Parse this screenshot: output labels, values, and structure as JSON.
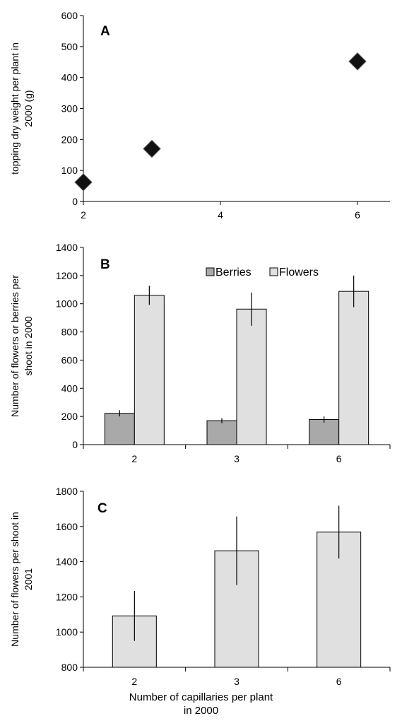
{
  "figure_xlabel": [
    "Number of capillaries per plant",
    "in 2000"
  ],
  "chart_data": [
    {
      "type": "scatter",
      "panel": "A",
      "ylabel": [
        "topping dry weight per plant in",
        "2000 (g)"
      ],
      "xlim": [
        2,
        6
      ],
      "ylim": [
        0,
        600
      ],
      "xticks": [
        2,
        4,
        6
      ],
      "yticks": [
        0,
        100,
        200,
        300,
        400,
        500,
        600
      ],
      "series": [
        {
          "x": [
            2,
            3,
            6
          ],
          "y": [
            62,
            170,
            452
          ],
          "err": [
            8,
            15,
            25
          ]
        }
      ],
      "marker": "diamond",
      "colors": {
        "marker": "#111111"
      }
    },
    {
      "type": "bar",
      "panel": "B",
      "ylabel": [
        "Number of flowers or berries per",
        "shoot in 2000"
      ],
      "categories": [
        "2",
        "3",
        "6"
      ],
      "ylim": [
        0,
        1400
      ],
      "yticks": [
        0,
        200,
        400,
        600,
        800,
        1000,
        1200,
        1400
      ],
      "series": [
        {
          "name": "Berries",
          "values": [
            222,
            170,
            178
          ],
          "err": [
            22,
            18,
            22
          ],
          "color": "#a9a9a9"
        },
        {
          "name": "Flowers",
          "values": [
            1060,
            962,
            1088
          ],
          "err": [
            68,
            118,
            112
          ],
          "color": "#e0e0e0"
        }
      ],
      "legend_position": "top"
    },
    {
      "type": "bar",
      "panel": "C",
      "ylabel": [
        "Number of flowers per shoot in",
        "2001"
      ],
      "categories": [
        "2",
        "3",
        "6"
      ],
      "ylim": [
        800,
        1800
      ],
      "yticks": [
        800,
        1000,
        1200,
        1400,
        1600,
        1800
      ],
      "series": [
        {
          "values": [
            1092,
            1462,
            1568
          ],
          "err": [
            142,
            195,
            150
          ],
          "color": "#e0e0e0"
        }
      ]
    }
  ]
}
